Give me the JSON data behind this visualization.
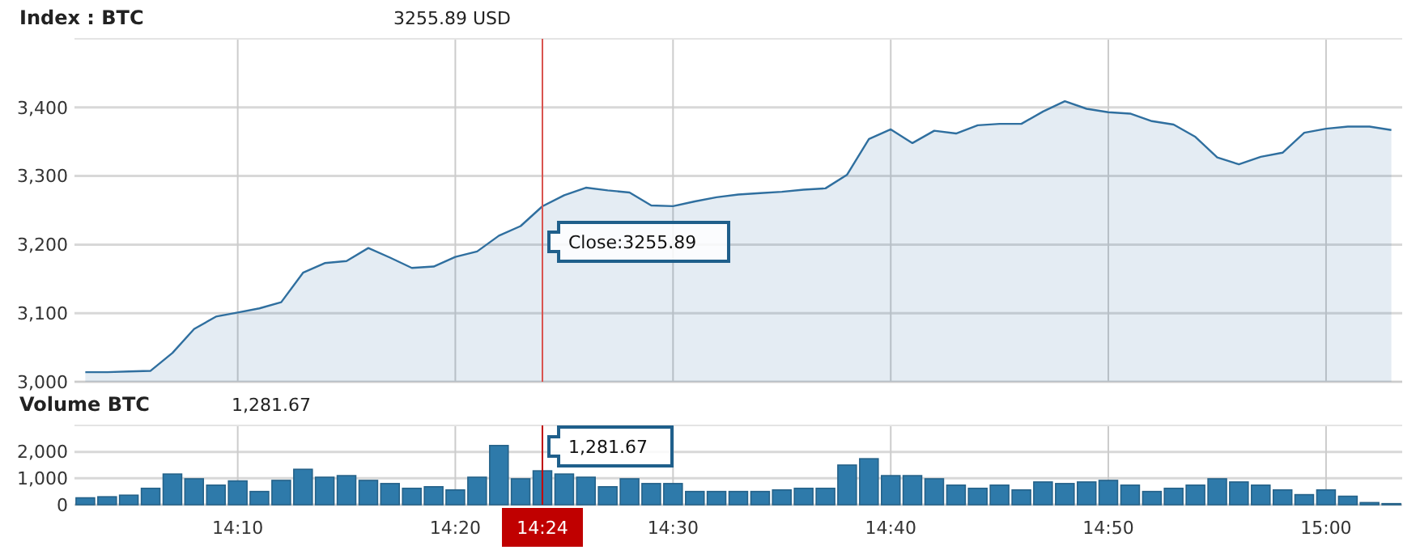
{
  "chart_data": [
    {
      "type": "area",
      "title": "Index : BTC",
      "subtitle": "3255.89 USD",
      "color": "#2f6f9f",
      "x": [
        14.05,
        14.0667,
        14.0833,
        14.1,
        14.1167,
        14.1333,
        14.15,
        14.1667,
        14.1833,
        14.2,
        14.2167,
        14.2333,
        14.25,
        14.2667,
        14.2833,
        14.3,
        14.3167,
        14.3333,
        14.35,
        14.3667,
        14.3833,
        14.4,
        14.4167,
        14.4333,
        14.45,
        14.4667,
        14.4833,
        14.5,
        14.5167,
        14.5333,
        14.55,
        14.5667,
        14.5833,
        14.6,
        14.6167,
        14.6333,
        14.65,
        14.6667,
        14.6833,
        14.7,
        14.7167,
        14.7333,
        14.75,
        14.7667,
        14.7833,
        14.8,
        14.8167,
        14.8333,
        14.85,
        14.8667,
        14.8833,
        14.9,
        14.9167,
        14.9333,
        14.95,
        14.9667,
        14.9833,
        15,
        15.0167,
        15.0333,
        15.05
      ],
      "values": [
        3014,
        3014,
        3015,
        3016,
        3042,
        3077,
        3095,
        3101,
        3107,
        3116,
        3159,
        3173,
        3176,
        3195,
        3181,
        3166,
        3168,
        3182,
        3190,
        3213,
        3227,
        3255.89,
        3272,
        3283,
        3279,
        3276,
        3257,
        3256,
        3263,
        3269,
        3273,
        3275,
        3277,
        3280,
        3282,
        3302,
        3354,
        3368,
        3348,
        3366,
        3362,
        3374,
        3376,
        3376,
        3394,
        3409,
        3398,
        3393,
        3391,
        3380,
        3375,
        3357,
        3327,
        3317,
        3328,
        3334,
        3363,
        3369,
        3372,
        3372,
        3367
      ],
      "xlim": [
        14.0417,
        15.0583
      ],
      "xticks": [
        {
          "value": 14.1667,
          "label": null
        },
        {
          "value": 14.3333,
          "label": null
        },
        {
          "value": 14.5,
          "label": null
        },
        {
          "value": 14.6667,
          "label": null
        },
        {
          "value": 14.8333,
          "label": null
        },
        {
          "value": 15,
          "label": null
        }
      ],
      "ylim": [
        3000,
        3500
      ],
      "yticks": [
        {
          "value": 3000,
          "label": "3,000"
        },
        {
          "value": 3100,
          "label": "3,100"
        },
        {
          "value": 3200,
          "label": "3,200"
        },
        {
          "value": 3300,
          "label": "3,300"
        },
        {
          "value": 3400,
          "label": "3,400"
        }
      ],
      "tick_labels": "y",
      "grid": true,
      "ref_lines": [
        {
          "axis": "x",
          "value": 14.4,
          "color": "#d9534f"
        }
      ],
      "annotations": [
        {
          "text": "Close:3255.89",
          "x": 14.4,
          "y": 3255.89
        }
      ]
    },
    {
      "type": "bar",
      "title": "Volume BTC",
      "subtitle": "1,281.67",
      "color": "#2e7aaa",
      "x": [
        14.05,
        14.0667,
        14.0833,
        14.1,
        14.1167,
        14.1333,
        14.15,
        14.1667,
        14.1833,
        14.2,
        14.2167,
        14.2333,
        14.25,
        14.2667,
        14.2833,
        14.3,
        14.3167,
        14.3333,
        14.35,
        14.3667,
        14.3833,
        14.4,
        14.4167,
        14.4333,
        14.45,
        14.4667,
        14.4833,
        14.5,
        14.5167,
        14.5333,
        14.55,
        14.5667,
        14.5833,
        14.6,
        14.6167,
        14.6333,
        14.65,
        14.6667,
        14.6833,
        14.7,
        14.7167,
        14.7333,
        14.75,
        14.7667,
        14.7833,
        14.8,
        14.8167,
        14.8333,
        14.85,
        14.8667,
        14.8833,
        14.9,
        14.9167,
        14.9333,
        14.95,
        14.9667,
        14.9833,
        15,
        15.0167,
        15.0333,
        15.05
      ],
      "values": [
        260,
        300,
        360,
        620,
        1160,
        980,
        740,
        900,
        500,
        920,
        1340,
        1040,
        1100,
        920,
        800,
        620,
        680,
        560,
        1040,
        2240,
        980,
        1281.67,
        1160,
        1040,
        680,
        980,
        800,
        800,
        500,
        500,
        500,
        500,
        560,
        620,
        620,
        1500,
        1740,
        1100,
        1100,
        980,
        740,
        620,
        740,
        560,
        860,
        800,
        860,
        920,
        740,
        500,
        620,
        740,
        980,
        860,
        740,
        560,
        380,
        560,
        320,
        80,
        40
      ],
      "xlim": [
        14.0417,
        15.0583
      ],
      "xticks": [
        {
          "value": 14.1667,
          "label": "14:10"
        },
        {
          "value": 14.3333,
          "label": "14:20"
        },
        {
          "value": 14.5,
          "label": "14:30"
        },
        {
          "value": 14.6667,
          "label": "14:40"
        },
        {
          "value": 14.8333,
          "label": "14:50"
        },
        {
          "value": 15,
          "label": "15:00"
        }
      ],
      "ylim": [
        0,
        3000
      ],
      "yticks": [
        {
          "value": 0,
          "label": "0"
        },
        {
          "value": 1000,
          "label": "1,000"
        },
        {
          "value": 2000,
          "label": "2,000"
        }
      ],
      "grid": true,
      "ref_lines": [
        {
          "axis": "x",
          "value": 14.4,
          "label": "14:24",
          "color": "#c00000"
        }
      ],
      "annotations": [
        {
          "text": "1,281.67",
          "x": 14.4,
          "y": 1281.67
        }
      ]
    }
  ]
}
